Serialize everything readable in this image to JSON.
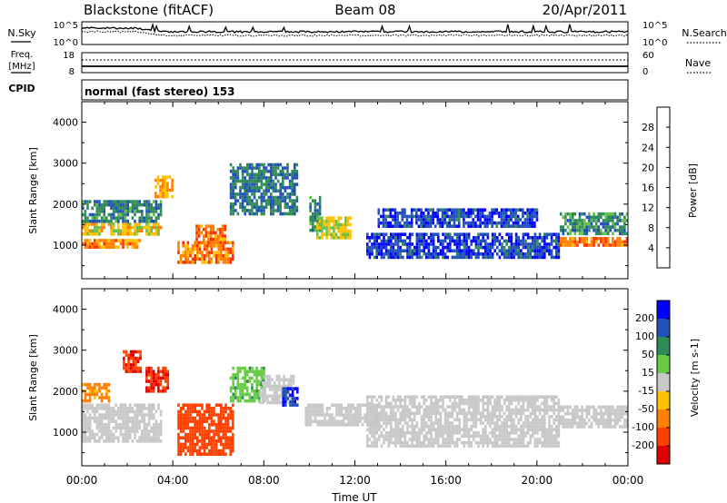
{
  "header": {
    "station": "Blackstone (fitACF)",
    "beam": "Beam 08",
    "date": "20/Apr/2011"
  },
  "noise_panel": {
    "left_label": "N.Sky",
    "right_label": "N.Search",
    "left_ticks": [
      "10^5",
      "10^0"
    ],
    "right_ticks": [
      "10^5",
      "10^0"
    ]
  },
  "freq_panel": {
    "left_label_1": "Freq.",
    "left_label_2": "[MHz]",
    "right_label": "Nave",
    "left_ticks": [
      "18",
      "8"
    ],
    "right_ticks": [
      "60",
      "0"
    ]
  },
  "cpid_panel": {
    "label": "CPID",
    "text": "normal (fast stereo) 153"
  },
  "power_panel": {
    "ylabel": "Slant Range [km]",
    "yticks": [
      "1000",
      "2000",
      "3000",
      "4000"
    ],
    "colorbar_label": "Power [dB]",
    "colorbar_ticks": [
      "4",
      "8",
      "12",
      "16",
      "20",
      "24",
      "28"
    ],
    "colors": [
      "#0000ff",
      "#2050b8",
      "#2e8b57",
      "#66c04a",
      "#ffc000",
      "#ff7f00",
      "#ff3000",
      "#e00000"
    ]
  },
  "velocity_panel": {
    "ylabel": "Slant Range [km]",
    "yticks": [
      "1000",
      "2000",
      "3000",
      "4000"
    ],
    "colorbar_label": "Velocity [m s-1]",
    "colorbar_ticks": [
      "200",
      "100",
      "50",
      "15",
      "-15",
      "-50",
      "-100",
      "-200"
    ],
    "colors": [
      "#0000ff",
      "#2050b8",
      "#2e8b57",
      "#66cc44",
      "#c8c8c8",
      "#ffc000",
      "#ff8000",
      "#ff4000",
      "#e00000"
    ]
  },
  "x_axis": {
    "label": "Time UT",
    "ticks": [
      "00:00",
      "04:00",
      "08:00",
      "12:00",
      "16:00",
      "20:00",
      "00:00"
    ]
  },
  "chart_data": {
    "type": "heatmap",
    "x_range_hours": [
      0,
      24
    ],
    "y_range_km": [
      180,
      4500
    ],
    "power_colorbar_range_db": [
      0,
      32
    ],
    "velocity_colorbar_range": [
      -250,
      250
    ],
    "power_echo_regions": [
      {
        "t0": 0.0,
        "t1": 2.5,
        "r0": 950,
        "r1": 1150,
        "db": 22
      },
      {
        "t0": 0.0,
        "t1": 3.5,
        "r0": 1300,
        "r1": 1550,
        "db": 17
      },
      {
        "t0": 0.0,
        "t1": 3.5,
        "r0": 1550,
        "r1": 2100,
        "db": 9
      },
      {
        "t0": 3.2,
        "t1": 4.0,
        "r0": 2200,
        "r1": 2700,
        "db": 20
      },
      {
        "t0": 4.2,
        "t1": 6.6,
        "r0": 550,
        "r1": 1100,
        "db": 22
      },
      {
        "t0": 5.0,
        "t1": 6.3,
        "r0": 1100,
        "r1": 1500,
        "db": 23
      },
      {
        "t0": 6.5,
        "t1": 9.5,
        "r0": 1800,
        "r1": 3000,
        "db": 8
      },
      {
        "t0": 10.0,
        "t1": 10.5,
        "r0": 1400,
        "r1": 2200,
        "db": 10
      },
      {
        "t0": 10.3,
        "t1": 11.8,
        "r0": 1150,
        "r1": 1700,
        "db": 16
      },
      {
        "t0": 12.5,
        "t1": 21.0,
        "r0": 700,
        "r1": 1300,
        "db": 5
      },
      {
        "t0": 13.0,
        "t1": 20.0,
        "r0": 1500,
        "r1": 1900,
        "db": 5
      },
      {
        "t0": 21.0,
        "t1": 24.0,
        "r0": 1000,
        "r1": 1200,
        "db": 23
      },
      {
        "t0": 21.0,
        "t1": 24.0,
        "r0": 1300,
        "r1": 1800,
        "db": 10
      }
    ],
    "velocity_echo_regions": [
      {
        "t0": 0.0,
        "t1": 3.5,
        "r0": 800,
        "r1": 1700,
        "v": 0
      },
      {
        "t0": 0.0,
        "t1": 1.2,
        "r0": 1750,
        "r1": 2200,
        "v": -60
      },
      {
        "t0": 1.8,
        "t1": 2.6,
        "r0": 2500,
        "r1": 3000,
        "v": -200
      },
      {
        "t0": 2.8,
        "t1": 3.8,
        "r0": 2000,
        "r1": 2600,
        "v": -200
      },
      {
        "t0": 4.2,
        "t1": 6.6,
        "r0": 500,
        "r1": 1700,
        "v": -120
      },
      {
        "t0": 6.5,
        "t1": 8.0,
        "r0": 1800,
        "r1": 2600,
        "v": 40
      },
      {
        "t0": 7.8,
        "t1": 9.3,
        "r0": 1700,
        "r1": 2400,
        "v": 0
      },
      {
        "t0": 8.8,
        "t1": 9.5,
        "r0": 1700,
        "r1": 2100,
        "v": 200
      },
      {
        "t0": 9.8,
        "t1": 13.0,
        "r0": 1200,
        "r1": 1700,
        "v": 0
      },
      {
        "t0": 12.5,
        "t1": 21.0,
        "r0": 700,
        "r1": 1900,
        "v": 0
      },
      {
        "t0": 21.0,
        "t1": 24.0,
        "r0": 1100,
        "r1": 1650,
        "v": 0
      }
    ]
  }
}
